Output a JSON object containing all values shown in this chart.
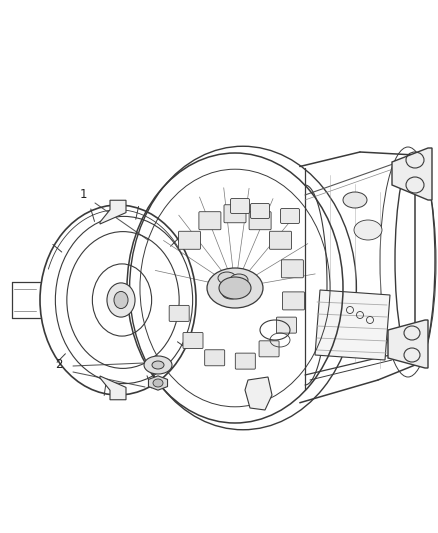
{
  "background_color": "#ffffff",
  "figure_width": 4.38,
  "figure_height": 5.33,
  "dpi": 100,
  "label1_text": "1",
  "label2_text": "2",
  "line_color": "#3a3a3a",
  "text_color": "#222222",
  "label_fontsize": 8.5,
  "image_extent": [
    0,
    438,
    0,
    533
  ]
}
